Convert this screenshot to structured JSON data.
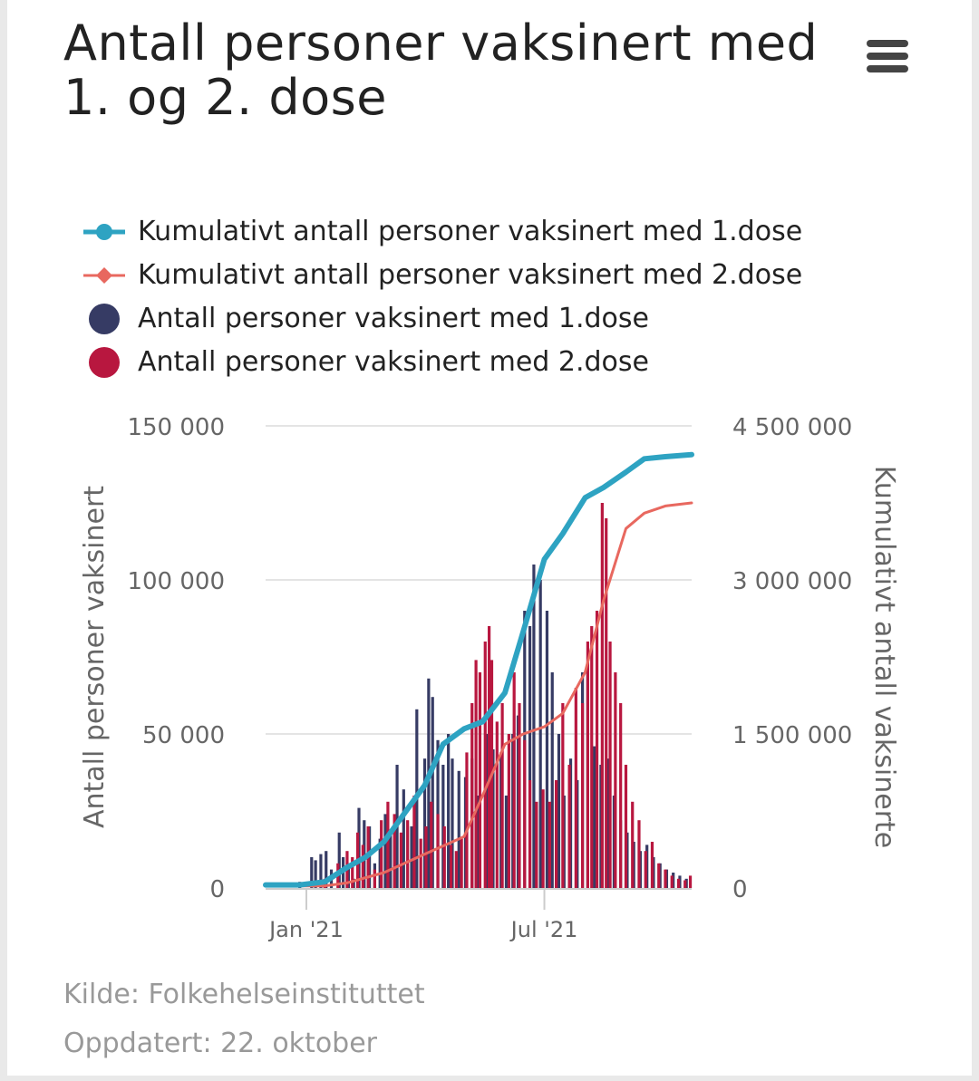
{
  "title": "Antall personer vaksinert med 1. og 2. dose",
  "menu_icon": "hamburger-menu-icon",
  "legend": [
    {
      "label": "Kumulativt antall personer vaksinert med 1.dose",
      "color": "#2ea3c2",
      "symbol": "line-circle"
    },
    {
      "label": "Kumulativt antall personer vaksinert med 2.dose",
      "color": "#e8685f",
      "symbol": "line-diamond"
    },
    {
      "label": "Antall personer vaksinert med 1.dose",
      "color": "#363b64",
      "symbol": "circle"
    },
    {
      "label": "Antall personer vaksinert med 2.dose",
      "color": "#b8173f",
      "symbol": "circle"
    }
  ],
  "footer": {
    "source": "Kilde: Folkehelseinstituttet",
    "updated": "Oppdatert: 22. oktober"
  },
  "chart_data": {
    "type": "bar+line",
    "x_range": [
      "2020-12-01",
      "2021-10-21"
    ],
    "x_ticks": [
      {
        "date": "2021-01-01",
        "label": "Jan '21"
      },
      {
        "date": "2021-07-01",
        "label": "Jul '21"
      }
    ],
    "left_axis": {
      "label": "Antall personer vaksinert",
      "min": 0,
      "max": 150000,
      "ticks": [
        {
          "value": 0,
          "label": "0"
        },
        {
          "value": 50000,
          "label": "50 000"
        },
        {
          "value": 100000,
          "label": "100 000"
        },
        {
          "value": 150000,
          "label": "150 000"
        }
      ]
    },
    "right_axis": {
      "label": "Kumulativt antall vaksinerte",
      "min": 0,
      "max": 4500000,
      "ticks": [
        {
          "value": 0,
          "label": "0"
        },
        {
          "value": 1500000,
          "label": "1 500 000"
        },
        {
          "value": 3000000,
          "label": "3 000 000"
        },
        {
          "value": 4500000,
          "label": "4 500 000"
        }
      ]
    },
    "grid": true,
    "legend_position": "top",
    "series": [
      {
        "name": "Kumulativt antall personer vaksinert med 1.dose",
        "kind": "line",
        "axis": "right",
        "points": [
          [
            "2020-12-01",
            30000
          ],
          [
            "2020-12-27",
            30000
          ],
          [
            "2021-01-15",
            60000
          ],
          [
            "2021-02-01",
            200000
          ],
          [
            "2021-02-15",
            300000
          ],
          [
            "2021-03-01",
            450000
          ],
          [
            "2021-03-15",
            700000
          ],
          [
            "2021-04-01",
            1000000
          ],
          [
            "2021-04-15",
            1400000
          ],
          [
            "2021-05-01",
            1550000
          ],
          [
            "2021-05-15",
            1620000
          ],
          [
            "2021-06-01",
            1900000
          ],
          [
            "2021-06-15",
            2500000
          ],
          [
            "2021-07-01",
            3200000
          ],
          [
            "2021-07-15",
            3450000
          ],
          [
            "2021-08-01",
            3800000
          ],
          [
            "2021-08-15",
            3900000
          ],
          [
            "2021-09-01",
            4050000
          ],
          [
            "2021-09-15",
            4180000
          ],
          [
            "2021-10-01",
            4200000
          ],
          [
            "2021-10-21",
            4220000
          ]
        ]
      },
      {
        "name": "Kumulativt antall personer vaksinert med 2.dose",
        "kind": "line",
        "axis": "right",
        "points": [
          [
            "2020-12-01",
            20000
          ],
          [
            "2021-01-15",
            20000
          ],
          [
            "2021-02-01",
            50000
          ],
          [
            "2021-03-01",
            150000
          ],
          [
            "2021-04-01",
            330000
          ],
          [
            "2021-05-01",
            500000
          ],
          [
            "2021-05-15",
            900000
          ],
          [
            "2021-06-01",
            1400000
          ],
          [
            "2021-06-15",
            1500000
          ],
          [
            "2021-07-01",
            1570000
          ],
          [
            "2021-07-15",
            1700000
          ],
          [
            "2021-08-01",
            2100000
          ],
          [
            "2021-08-15",
            2800000
          ],
          [
            "2021-09-01",
            3500000
          ],
          [
            "2021-09-15",
            3650000
          ],
          [
            "2021-10-01",
            3720000
          ],
          [
            "2021-10-21",
            3750000
          ]
        ]
      },
      {
        "name": "Antall personer vaksinert med 1.dose",
        "kind": "bar",
        "axis": "left",
        "points": [
          [
            "2020-12-27",
            2000
          ],
          [
            "2021-01-05",
            10000
          ],
          [
            "2021-01-08",
            9000
          ],
          [
            "2021-01-12",
            11000
          ],
          [
            "2021-01-16",
            12000
          ],
          [
            "2021-01-20",
            6000
          ],
          [
            "2021-01-26",
            18000
          ],
          [
            "2021-01-29",
            10000
          ],
          [
            "2021-02-02",
            8000
          ],
          [
            "2021-02-06",
            3000
          ],
          [
            "2021-02-10",
            26000
          ],
          [
            "2021-02-14",
            22000
          ],
          [
            "2021-02-18",
            20000
          ],
          [
            "2021-02-22",
            8000
          ],
          [
            "2021-02-26",
            16000
          ],
          [
            "2021-03-02",
            24000
          ],
          [
            "2021-03-06",
            18000
          ],
          [
            "2021-03-11",
            40000
          ],
          [
            "2021-03-16",
            32000
          ],
          [
            "2021-03-22",
            20000
          ],
          [
            "2021-03-26",
            58000
          ],
          [
            "2021-04-01",
            42000
          ],
          [
            "2021-04-04",
            68000
          ],
          [
            "2021-04-07",
            62000
          ],
          [
            "2021-04-11",
            48000
          ],
          [
            "2021-04-15",
            40000
          ],
          [
            "2021-04-19",
            50000
          ],
          [
            "2021-04-22",
            42000
          ],
          [
            "2021-04-27",
            38000
          ],
          [
            "2021-05-02",
            36000
          ],
          [
            "2021-05-07",
            42000
          ],
          [
            "2021-05-12",
            30000
          ],
          [
            "2021-05-18",
            50000
          ],
          [
            "2021-05-23",
            45000
          ],
          [
            "2021-05-29",
            44000
          ],
          [
            "2021-06-02",
            30000
          ],
          [
            "2021-06-07",
            50000
          ],
          [
            "2021-06-11",
            56000
          ],
          [
            "2021-06-16",
            90000
          ],
          [
            "2021-06-20",
            85000
          ],
          [
            "2021-06-23",
            105000
          ],
          [
            "2021-06-28",
            100000
          ],
          [
            "2021-07-03",
            90000
          ],
          [
            "2021-07-07",
            70000
          ],
          [
            "2021-07-12",
            50000
          ],
          [
            "2021-07-16",
            30000
          ],
          [
            "2021-07-21",
            42000
          ],
          [
            "2021-07-26",
            35000
          ],
          [
            "2021-07-30",
            70000
          ],
          [
            "2021-08-03",
            70000
          ],
          [
            "2021-08-08",
            46000
          ],
          [
            "2021-08-13",
            40000
          ],
          [
            "2021-08-18",
            42000
          ],
          [
            "2021-08-23",
            30000
          ],
          [
            "2021-08-28",
            22000
          ],
          [
            "2021-09-02",
            18000
          ],
          [
            "2021-09-07",
            15000
          ],
          [
            "2021-09-12",
            12000
          ],
          [
            "2021-09-17",
            14000
          ],
          [
            "2021-09-22",
            10000
          ],
          [
            "2021-09-27",
            8000
          ],
          [
            "2021-10-02",
            6000
          ],
          [
            "2021-10-07",
            5000
          ],
          [
            "2021-10-12",
            4000
          ],
          [
            "2021-10-17",
            3000
          ]
        ]
      },
      {
        "name": "Antall personer vaksinert med 2.dose",
        "kind": "bar",
        "axis": "left",
        "points": [
          [
            "2021-01-15",
            3000
          ],
          [
            "2021-01-25",
            8000
          ],
          [
            "2021-02-01",
            12000
          ],
          [
            "2021-02-05",
            10000
          ],
          [
            "2021-02-09",
            18000
          ],
          [
            "2021-02-13",
            14000
          ],
          [
            "2021-02-17",
            20000
          ],
          [
            "2021-02-22",
            6000
          ],
          [
            "2021-02-27",
            22000
          ],
          [
            "2021-03-04",
            28000
          ],
          [
            "2021-03-09",
            24000
          ],
          [
            "2021-03-14",
            18000
          ],
          [
            "2021-03-19",
            22000
          ],
          [
            "2021-03-24",
            30000
          ],
          [
            "2021-03-29",
            16000
          ],
          [
            "2021-04-02",
            20000
          ],
          [
            "2021-04-06",
            28000
          ],
          [
            "2021-04-11",
            24000
          ],
          [
            "2021-04-16",
            20000
          ],
          [
            "2021-04-21",
            14000
          ],
          [
            "2021-04-25",
            12000
          ],
          [
            "2021-04-29",
            16000
          ],
          [
            "2021-05-03",
            44000
          ],
          [
            "2021-05-07",
            60000
          ],
          [
            "2021-05-10",
            74000
          ],
          [
            "2021-05-13",
            70000
          ],
          [
            "2021-05-17",
            80000
          ],
          [
            "2021-05-20",
            85000
          ],
          [
            "2021-05-22",
            74000
          ],
          [
            "2021-05-26",
            54000
          ],
          [
            "2021-05-30",
            60000
          ],
          [
            "2021-06-04",
            50000
          ],
          [
            "2021-06-08",
            70000
          ],
          [
            "2021-06-12",
            60000
          ],
          [
            "2021-06-16",
            48000
          ],
          [
            "2021-06-20",
            35000
          ],
          [
            "2021-06-25",
            28000
          ],
          [
            "2021-06-30",
            32000
          ],
          [
            "2021-07-05",
            28000
          ],
          [
            "2021-07-10",
            35000
          ],
          [
            "2021-07-15",
            60000
          ],
          [
            "2021-07-20",
            40000
          ],
          [
            "2021-07-25",
            65000
          ],
          [
            "2021-07-30",
            60000
          ],
          [
            "2021-08-03",
            80000
          ],
          [
            "2021-08-06",
            85000
          ],
          [
            "2021-08-10",
            90000
          ],
          [
            "2021-08-14",
            125000
          ],
          [
            "2021-08-17",
            120000
          ],
          [
            "2021-08-20",
            80000
          ],
          [
            "2021-08-24",
            70000
          ],
          [
            "2021-08-28",
            60000
          ],
          [
            "2021-09-01",
            40000
          ],
          [
            "2021-09-06",
            28000
          ],
          [
            "2021-09-11",
            22000
          ],
          [
            "2021-09-16",
            12000
          ],
          [
            "2021-09-21",
            15000
          ],
          [
            "2021-09-26",
            8000
          ],
          [
            "2021-10-01",
            6000
          ],
          [
            "2021-10-06",
            4000
          ],
          [
            "2021-10-11",
            3000
          ],
          [
            "2021-10-16",
            2500
          ],
          [
            "2021-10-20",
            4000
          ]
        ]
      }
    ]
  }
}
